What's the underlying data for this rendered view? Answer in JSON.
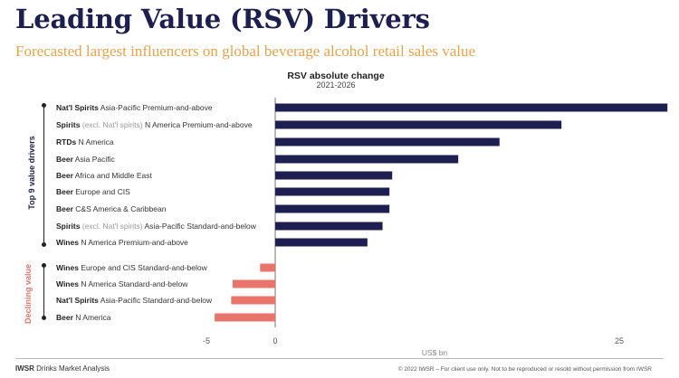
{
  "header": {
    "title": "Leading Value (RSV) Drivers",
    "subtitle": "Forecasted largest influencers on global beverage alcohol retail sales value"
  },
  "groups": {
    "top_label": "Top 9 value drivers",
    "bottom_label": "Declining value"
  },
  "footer": {
    "brand": "IWSR",
    "product": "Drinks Market Analysis",
    "copyright": "© 2022 IWSR – For client use only. Not to be reproduced or resold without permission from IWSR"
  },
  "colors": {
    "positive": "#1c1f4f",
    "negative": "#e8746b",
    "title": "#1c1f4f",
    "subtitle": "#e8a24a"
  },
  "chart_data": {
    "type": "bar",
    "orientation": "horizontal",
    "title": "RSV absolute change",
    "subtitle": "2021-2026",
    "xlabel": "US$ bn",
    "xlim": [
      -5,
      28
    ],
    "xticks": [
      "-5",
      "0",
      "25"
    ],
    "categories": [
      {
        "bold": "Nat'l Spirits",
        "muted": "",
        "rest": "Asia-Pacific Premium-and-above"
      },
      {
        "bold": "Spirits",
        "muted": "(excl. Nat'l spirits)",
        "rest": "N America Premium-and-above"
      },
      {
        "bold": "RTDs",
        "muted": "",
        "rest": "N America"
      },
      {
        "bold": "Beer",
        "muted": "",
        "rest": "Asia Pacific"
      },
      {
        "bold": "Beer",
        "muted": "",
        "rest": "Africa and Middle East"
      },
      {
        "bold": "Beer",
        "muted": "",
        "rest": "Europe and CIS"
      },
      {
        "bold": "Beer",
        "muted": "",
        "rest": "C&S America & Caribbean"
      },
      {
        "bold": "Spirits",
        "muted": "(excl. Nat'l spirits)",
        "rest": "Asia-Pacific Standard-and-below"
      },
      {
        "bold": "Wines",
        "muted": "",
        "rest": "N America Premium-and-above"
      },
      {
        "bold": "Wines",
        "muted": "",
        "rest": "Europe and CIS Standard-and-below"
      },
      {
        "bold": "Wines",
        "muted": "",
        "rest": "N America Standard-and-below"
      },
      {
        "bold": "Nat'l Spirits",
        "muted": "",
        "rest": "Asia-Pacific Standard-and-below"
      },
      {
        "bold": "Beer",
        "muted": "",
        "rest": "N America"
      }
    ],
    "values": [
      28.5,
      20.8,
      16.3,
      13.3,
      8.5,
      8.3,
      8.3,
      7.8,
      6.7,
      -1.1,
      -3.1,
      -3.2,
      -4.4
    ]
  }
}
